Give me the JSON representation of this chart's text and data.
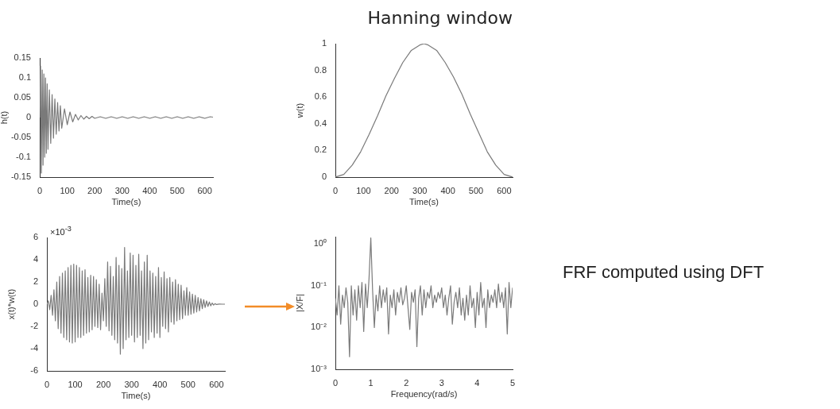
{
  "chart_data": [
    {
      "type": "line",
      "ylabel": "h(t)",
      "xlabel": "Time(s)",
      "color": "#7a7a7a",
      "x": [
        0,
        3,
        6,
        9,
        12,
        15,
        18,
        21,
        24,
        27,
        30,
        35,
        40,
        45,
        50,
        55,
        60,
        65,
        70,
        75,
        80,
        90,
        100,
        110,
        120,
        130,
        140,
        150,
        160,
        170,
        180,
        190,
        200,
        220,
        240,
        260,
        280,
        300,
        320,
        340,
        360,
        380,
        400,
        420,
        440,
        460,
        480,
        500,
        520,
        540,
        560,
        580,
        600,
        620,
        630
      ],
      "values": [
        0,
        0.13,
        -0.14,
        0.12,
        -0.12,
        0.11,
        -0.1,
        0.1,
        -0.09,
        0.085,
        -0.08,
        0.07,
        -0.065,
        0.058,
        -0.052,
        0.047,
        -0.042,
        0.038,
        -0.034,
        0.03,
        -0.027,
        0.022,
        -0.018,
        0.014,
        -0.011,
        0.008,
        -0.006,
        0.005,
        -0.004,
        0.003,
        -0.003,
        0.003,
        -0.002,
        0.002,
        -0.002,
        0.002,
        -0.002,
        0.002,
        -0.002,
        0.002,
        -0.002,
        0.002,
        -0.002,
        0.002,
        -0.002,
        0.002,
        -0.002,
        0.002,
        -0.002,
        0.002,
        -0.002,
        0.002,
        -0.002,
        0.002,
        0.001
      ],
      "xlim": [
        0,
        630
      ],
      "xticks": [
        0,
        100,
        200,
        300,
        400,
        500,
        600
      ],
      "ylim": [
        -0.15,
        0.15
      ],
      "yticks": [
        -0.15,
        -0.1,
        -0.05,
        0,
        0.05,
        0.1,
        0.15
      ]
    },
    {
      "type": "line",
      "title": "Hanning window",
      "ylabel": "w(t)",
      "xlabel": "Time(s)",
      "color": "#7a7a7a",
      "x": [
        0,
        30,
        60,
        90,
        120,
        150,
        180,
        210,
        240,
        270,
        300,
        315,
        330,
        360,
        390,
        420,
        450,
        480,
        510,
        540,
        570,
        600,
        630
      ],
      "values": [
        0,
        0.02,
        0.09,
        0.19,
        0.32,
        0.46,
        0.61,
        0.74,
        0.86,
        0.95,
        0.99,
        1,
        0.99,
        0.95,
        0.86,
        0.75,
        0.62,
        0.47,
        0.33,
        0.19,
        0.09,
        0.02,
        0
      ],
      "xlim": [
        0,
        630
      ],
      "xticks": [
        0,
        100,
        200,
        300,
        400,
        500,
        600
      ],
      "ylim": [
        0,
        1
      ],
      "yticks": [
        0,
        0.2,
        0.4,
        0.6,
        0.8,
        1
      ]
    },
    {
      "type": "line",
      "ylabel": "x(t)*w(t)",
      "xlabel": "Time(s)",
      "color": "#7a7a7a",
      "annotations": [
        "×10$^{-3}$"
      ],
      "x": [
        0,
        5,
        10,
        15,
        20,
        25,
        30,
        35,
        40,
        45,
        50,
        55,
        60,
        65,
        70,
        75,
        80,
        85,
        90,
        95,
        100,
        105,
        110,
        115,
        120,
        125,
        130,
        135,
        140,
        145,
        150,
        155,
        160,
        165,
        170,
        175,
        180,
        185,
        190,
        195,
        200,
        205,
        210,
        215,
        220,
        225,
        230,
        235,
        240,
        245,
        250,
        255,
        260,
        265,
        270,
        275,
        280,
        285,
        290,
        295,
        300,
        305,
        310,
        315,
        320,
        325,
        330,
        335,
        340,
        345,
        350,
        355,
        360,
        365,
        370,
        375,
        380,
        385,
        390,
        395,
        400,
        405,
        410,
        415,
        420,
        425,
        430,
        435,
        440,
        445,
        450,
        455,
        460,
        465,
        470,
        475,
        480,
        485,
        490,
        495,
        500,
        505,
        510,
        515,
        520,
        525,
        530,
        535,
        540,
        545,
        550,
        555,
        560,
        565,
        570,
        575,
        580,
        585,
        590,
        595,
        600,
        610,
        620,
        630
      ],
      "values": [
        0,
        0.3,
        -0.5,
        0.8,
        -1,
        1.3,
        -1.5,
        2,
        -2.2,
        2.5,
        -2.6,
        2.8,
        -3,
        3,
        -3.2,
        3.3,
        -3.4,
        3.5,
        -3.5,
        3.6,
        -3.4,
        3.5,
        -3,
        3.3,
        -3,
        3,
        -2.8,
        3.1,
        -2.6,
        2.4,
        -2.5,
        2.6,
        -2.3,
        2.5,
        -2,
        2.2,
        -2.1,
        1.8,
        -2.3,
        1,
        -1.5,
        2.3,
        -2,
        3.8,
        -2.4,
        3.4,
        -2.8,
        2.5,
        -3.2,
        4.2,
        -3.5,
        3.5,
        -4.5,
        3.2,
        -4,
        5.1,
        -3.2,
        3,
        -3,
        4.6,
        -2.8,
        4.4,
        -3.4,
        3.5,
        -3,
        4.5,
        -2.8,
        3,
        -4,
        3.8,
        -3.5,
        4.4,
        -3.2,
        3,
        -2.5,
        2.8,
        -3,
        2.5,
        -2.6,
        3.3,
        -3,
        2.4,
        -2,
        2.9,
        -2.2,
        2.3,
        -2.5,
        2.4,
        -1.6,
        2,
        -1.8,
        2.2,
        -1.5,
        1.8,
        -1.4,
        1.7,
        -1.3,
        1.2,
        -1,
        1.5,
        -1,
        1.1,
        -0.9,
        0.9,
        -0.8,
        0.8,
        -0.7,
        0.6,
        -0.6,
        0.5,
        -0.4,
        0.4,
        -0.3,
        0.3,
        -0.2,
        0.2,
        -0.15,
        0.1,
        -0.08,
        0.05,
        -0.03,
        0.01,
        0,
        0
      ],
      "xlim": [
        0,
        630
      ],
      "xticks": [
        0,
        100,
        200,
        300,
        400,
        500,
        600
      ],
      "ylim": [
        -6,
        6
      ],
      "yticks": [
        -6,
        -4,
        -2,
        0,
        2,
        4,
        6
      ]
    },
    {
      "type": "line",
      "ylabel": "|X/F|",
      "xlabel": "Frequency(rad/s)",
      "color": "#7a7a7a",
      "log": "y",
      "annotations": [
        "FRF computed using DFT"
      ],
      "x": [
        0,
        0.05,
        0.1,
        0.15,
        0.2,
        0.25,
        0.3,
        0.35,
        0.4,
        0.45,
        0.5,
        0.55,
        0.6,
        0.65,
        0.7,
        0.75,
        0.8,
        0.85,
        0.9,
        0.95,
        1,
        1.05,
        1.1,
        1.15,
        1.2,
        1.25,
        1.3,
        1.35,
        1.4,
        1.45,
        1.5,
        1.55,
        1.6,
        1.65,
        1.7,
        1.75,
        1.8,
        1.85,
        1.9,
        1.95,
        2,
        2.05,
        2.1,
        2.15,
        2.2,
        2.25,
        2.3,
        2.35,
        2.4,
        2.45,
        2.5,
        2.55,
        2.6,
        2.65,
        2.7,
        2.75,
        2.8,
        2.85,
        2.9,
        2.95,
        3,
        3.05,
        3.1,
        3.15,
        3.2,
        3.25,
        3.3,
        3.35,
        3.4,
        3.45,
        3.5,
        3.55,
        3.6,
        3.65,
        3.7,
        3.75,
        3.8,
        3.85,
        3.9,
        3.95,
        4,
        4.05,
        4.1,
        4.15,
        4.2,
        4.25,
        4.3,
        4.35,
        4.4,
        4.45,
        4.5,
        4.55,
        4.6,
        4.65,
        4.7,
        4.75,
        4.8,
        4.85,
        4.9,
        4.95,
        5
      ],
      "values": [
        0.05,
        0.02,
        0.1,
        0.012,
        0.06,
        0.03,
        0.09,
        0.04,
        0.002,
        0.1,
        0.02,
        0.08,
        0.015,
        0.1,
        0.03,
        0.12,
        0.008,
        0.11,
        0.03,
        0.15,
        1.4,
        0.08,
        0.01,
        0.06,
        0.025,
        0.1,
        0.03,
        0.08,
        0.04,
        0.09,
        0.007,
        0.06,
        0.03,
        0.08,
        0.02,
        0.07,
        0.04,
        0.09,
        0.035,
        0.05,
        0.1,
        0.03,
        0.009,
        0.07,
        0.04,
        0.08,
        0.0035,
        0.05,
        0.1,
        0.02,
        0.08,
        0.03,
        0.07,
        0.05,
        0.1,
        0.03,
        0.06,
        0.04,
        0.07,
        0.05,
        0.09,
        0.03,
        0.06,
        0.02,
        0.05,
        0.1,
        0.012,
        0.04,
        0.07,
        0.03,
        0.09,
        0.02,
        0.05,
        0.015,
        0.06,
        0.02,
        0.1,
        0.03,
        0.05,
        0.01,
        0.07,
        0.02,
        0.12,
        0.03,
        0.05,
        0.01,
        0.08,
        0.03,
        0.06,
        0.04,
        0.08,
        0.03,
        0.11,
        0.04,
        0.07,
        0.03,
        0.09,
        0.007,
        0.12,
        0.03,
        0.09
      ],
      "xlim": [
        0,
        5
      ],
      "xticks": [
        0,
        1,
        2,
        3,
        4,
        5
      ],
      "ylim": [
        0.001,
        1.5
      ],
      "yticks": [
        {
          "value": 0.001,
          "label": "10⁻³"
        },
        {
          "value": 0.01,
          "label": "10⁻²"
        },
        {
          "value": 0.1,
          "label": "10⁻¹"
        },
        {
          "value": 1,
          "label": "10⁰"
        }
      ]
    }
  ]
}
